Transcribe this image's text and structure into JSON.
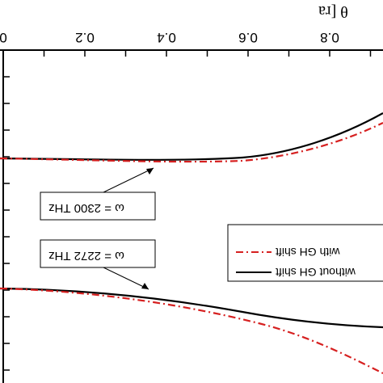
{
  "chart_data": {
    "type": "line",
    "mirrored": true,
    "xlabel": "θ [ra",
    "x_ticks": [
      "0",
      "0.2",
      "0.4",
      "0.6",
      "0.8"
    ],
    "x_tick_values": [
      0,
      0.2,
      0.4,
      0.6,
      0.8
    ],
    "xlim": [
      0,
      0.9
    ],
    "grid": false,
    "legend_position": "center-right",
    "series": [
      {
        "name": "with GH shift",
        "style": "dash-dot",
        "color": "#d62020",
        "x": [
          0,
          0.1,
          0.2,
          0.3,
          0.4,
          0.5,
          0.6,
          0.7,
          0.8,
          0.9
        ],
        "y": [
          1.0,
          0.995,
          0.99,
          0.98,
          0.97,
          0.965,
          0.96,
          0.955,
          0.95,
          0.945
        ]
      },
      {
        "name": "without GH shift",
        "style": "solid",
        "color": "#000000",
        "x": [
          0,
          0.1,
          0.2,
          0.3,
          0.4,
          0.5,
          0.6,
          0.7,
          0.8,
          0.9
        ],
        "y": [
          1.0,
          0.998,
          0.996,
          0.993,
          0.99,
          0.987,
          0.983,
          0.978,
          0.972,
          0.965
        ]
      }
    ],
    "annotations": [
      {
        "text": "ω = 2300 THz"
      },
      {
        "text": "ω = 2272 THz"
      }
    ]
  }
}
